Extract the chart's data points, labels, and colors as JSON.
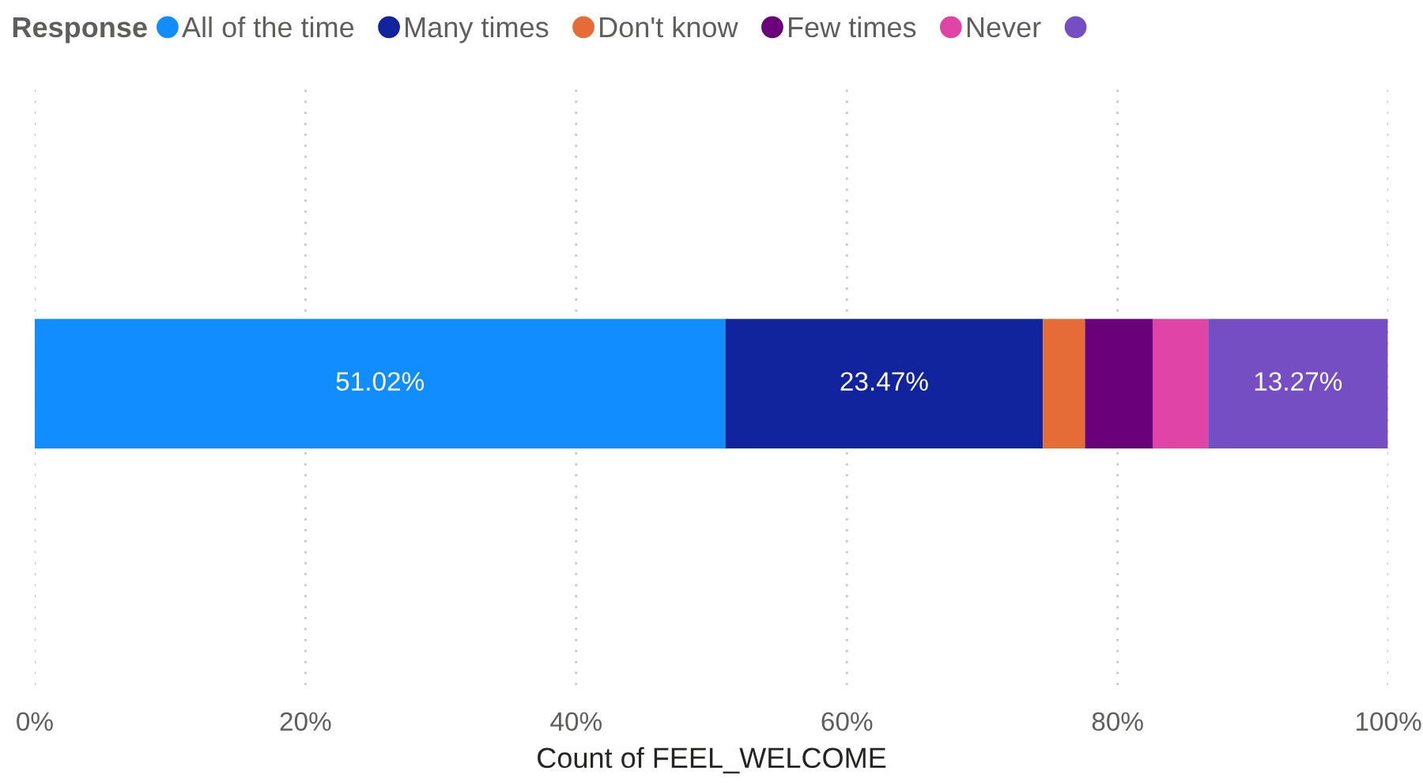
{
  "chart_data": {
    "type": "bar",
    "orientation": "horizontal",
    "stacked": true,
    "categories": [
      null
    ],
    "xlabel": "Count of FEEL_WELCOME",
    "legend_title": "Response",
    "legend": "top left",
    "grid": "x",
    "tick_labels": "x",
    "xlim": [
      0,
      100
    ],
    "xticks": [
      {
        "value": 0,
        "label": "0%"
      },
      {
        "value": 20,
        "label": "20%"
      },
      {
        "value": 40,
        "label": "40%"
      },
      {
        "value": 60,
        "label": "60%"
      },
      {
        "value": 80,
        "label": "80%"
      },
      {
        "value": 100,
        "label": "100%"
      }
    ],
    "series": [
      {
        "name": "All of the time",
        "color": "#118dff",
        "values": [
          51.02
        ],
        "value_labels": [
          "51.02%"
        ]
      },
      {
        "name": "Many times",
        "color": "#12239e",
        "values": [
          23.47
        ],
        "value_labels": [
          "23.47%"
        ]
      },
      {
        "name": "Don't know",
        "color": "#e66c37",
        "values": [
          3.1
        ],
        "value_labels": [
          null
        ]
      },
      {
        "name": "Few times",
        "color": "#6b007b",
        "values": [
          5.0
        ],
        "value_labels": [
          null
        ]
      },
      {
        "name": "Never",
        "color": "#e044a7",
        "values": [
          4.1
        ],
        "value_labels": [
          null
        ]
      },
      {
        "color": "#744ec2",
        "values": [
          13.27
        ],
        "value_labels": [
          "13.27%"
        ]
      }
    ]
  }
}
